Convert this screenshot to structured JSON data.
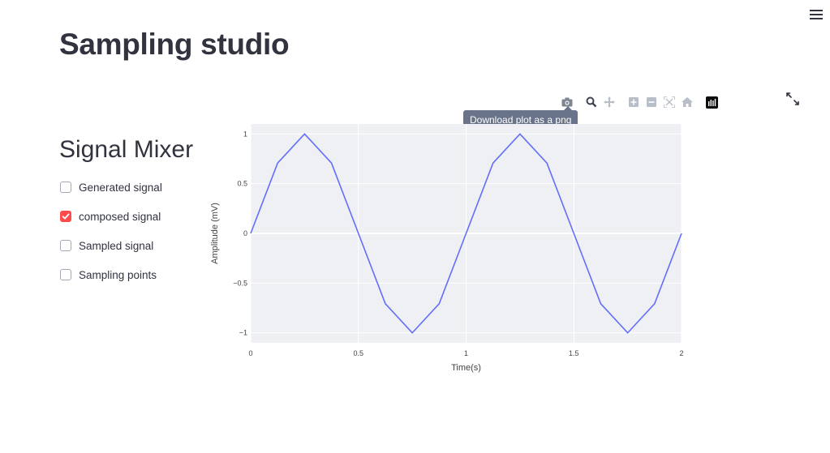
{
  "app": {
    "title": "Sampling studio"
  },
  "sidebar": {
    "heading": "Signal Mixer",
    "options": [
      {
        "label": "Generated signal",
        "checked": false
      },
      {
        "label": "composed signal",
        "checked": true
      },
      {
        "label": "Sampled signal",
        "checked": false
      },
      {
        "label": "Sampling points",
        "checked": false
      }
    ]
  },
  "toolbar": {
    "tooltip": "Download plot as a png",
    "buttons": [
      "camera-icon",
      "zoom-icon",
      "pan-icon",
      "zoom-in-icon",
      "zoom-out-icon",
      "autoscale-icon",
      "reset-axes-icon",
      "plotly-logo-icon"
    ]
  },
  "colors": {
    "accent": "#ff4b4b",
    "line": "#636efa",
    "plot_bg": "#eef0f4",
    "text": "#31333f"
  },
  "chart_data": {
    "type": "line",
    "xlabel": "Time(s)",
    "ylabel": "Amplitude (mV)",
    "xlim": [
      0,
      2
    ],
    "ylim": [
      -1.1,
      1.1
    ],
    "xticks": [
      0,
      0.5,
      1,
      1.5,
      2
    ],
    "xtick_labels": [
      "0",
      "0.5",
      "1",
      "1.5",
      "2"
    ],
    "yticks": [
      1,
      0.5,
      0,
      -0.5,
      -1
    ],
    "ytick_labels": [
      "1",
      "0.5",
      "0",
      "−0.5",
      "−1"
    ],
    "grid": true,
    "series": [
      {
        "color": "#636efa",
        "x": [
          0,
          0.125,
          0.25,
          0.375,
          0.5,
          0.625,
          0.75,
          0.875,
          1,
          1.125,
          1.25,
          1.375,
          1.5,
          1.625,
          1.75,
          1.875,
          2
        ],
        "y": [
          0,
          0.707,
          1,
          0.707,
          0,
          -0.707,
          -1,
          -0.707,
          0,
          0.707,
          1,
          0.707,
          0,
          -0.707,
          -1,
          -0.707,
          0
        ]
      }
    ]
  }
}
